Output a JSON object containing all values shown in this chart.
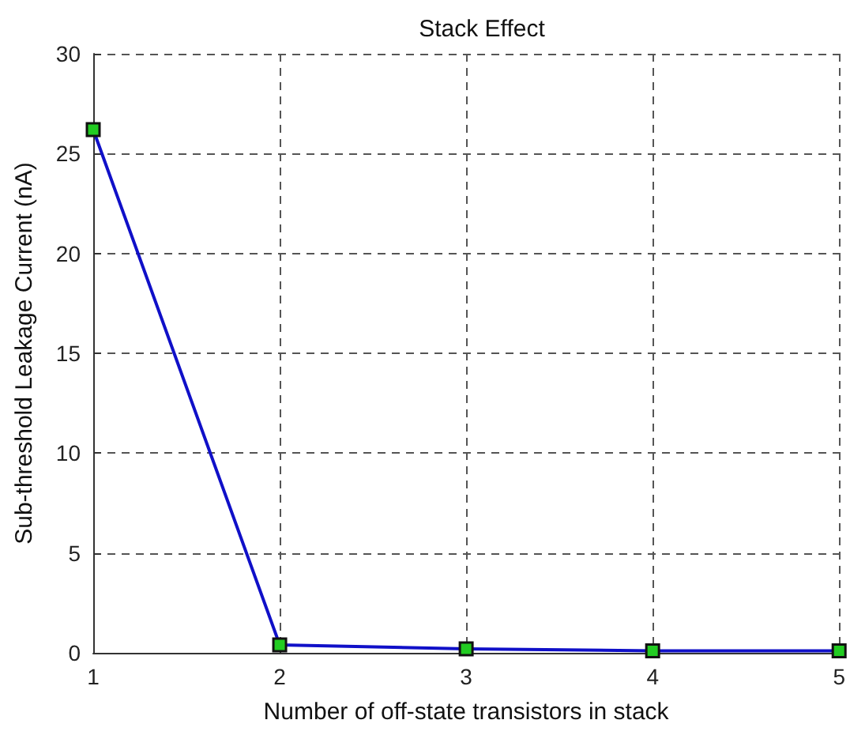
{
  "chart_data": {
    "type": "line",
    "title": "Stack Effect",
    "xlabel": "Number of off-state transistors in stack",
    "ylabel": "Sub-threshold Leakage Current (nA)",
    "x": [
      1,
      2,
      3,
      4,
      5
    ],
    "series": [
      {
        "color": "#1010c8",
        "values": [
          26.2,
          0.4,
          0.2,
          0.1,
          0.1
        ]
      }
    ],
    "xlim": [
      1,
      5
    ],
    "xticks": [
      1,
      2,
      3,
      4,
      5
    ],
    "ylim": [
      0,
      30
    ],
    "yticks": [
      0,
      5,
      10,
      15,
      20,
      25,
      30
    ],
    "grid": true,
    "marker": "square",
    "line_style": "solid"
  }
}
